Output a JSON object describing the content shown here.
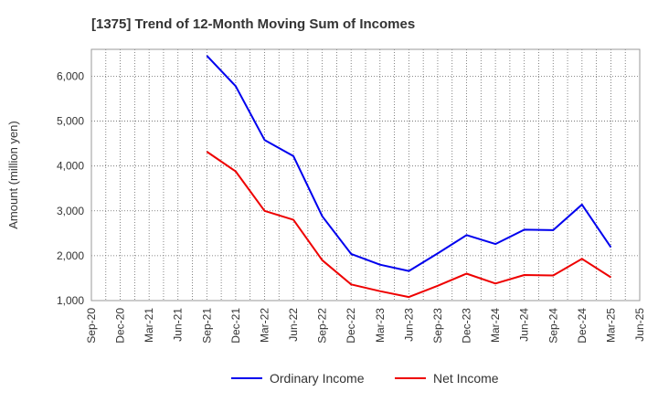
{
  "chart_data": {
    "type": "line",
    "title": "[1375]  Trend of 12-Month Moving Sum of Incomes",
    "xlabel": "",
    "ylabel": "Amount (million yen)",
    "categories": [
      "Sep-20",
      "Dec-20",
      "Mar-21",
      "Jun-21",
      "Sep-21",
      "Dec-21",
      "Mar-22",
      "Jun-22",
      "Sep-22",
      "Dec-22",
      "Mar-23",
      "Jun-23",
      "Sep-23",
      "Dec-23",
      "Mar-24",
      "Jun-24",
      "Sep-24",
      "Dec-24",
      "Mar-25",
      "Jun-25"
    ],
    "ylim": [
      1000,
      6600
    ],
    "yticks": [
      1000,
      2000,
      3000,
      4000,
      5000,
      6000
    ],
    "ytick_labels": [
      "1,000",
      "2,000",
      "3,000",
      "4,000",
      "5,000",
      "6,000"
    ],
    "grid": true,
    "legend_position": "bottom",
    "series": [
      {
        "name": "Ordinary Income",
        "color": "#0000ee",
        "values": [
          null,
          null,
          null,
          null,
          6460,
          5780,
          4580,
          4220,
          2880,
          2040,
          1800,
          1660,
          2050,
          2460,
          2260,
          2580,
          2570,
          3140,
          2190,
          null
        ]
      },
      {
        "name": "Net Income",
        "color": "#ee0000",
        "values": [
          null,
          null,
          null,
          null,
          4320,
          3880,
          3000,
          2800,
          1900,
          1360,
          1210,
          1080,
          1330,
          1600,
          1380,
          1570,
          1560,
          1930,
          1520,
          null
        ]
      }
    ]
  }
}
